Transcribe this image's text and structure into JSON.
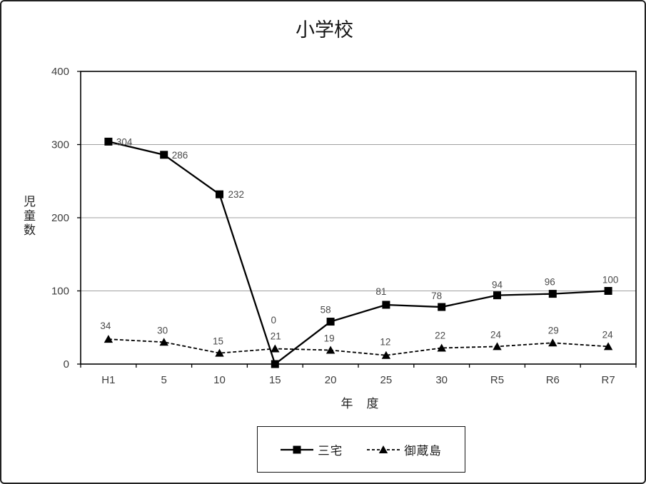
{
  "chart_data": {
    "type": "line",
    "title": "小学校",
    "xlabel": "年度",
    "xlabel_display": "年　度",
    "ylabel": "児童数",
    "categories": [
      "H1",
      "5",
      "10",
      "15",
      "20",
      "25",
      "30",
      "R5",
      "R6",
      "R7"
    ],
    "series": [
      {
        "name": "三宅",
        "marker": "square",
        "line_style": "solid",
        "color": "#000000",
        "values": [
          304,
          286,
          232,
          0,
          58,
          81,
          78,
          94,
          96,
          100
        ]
      },
      {
        "name": "御蔵島",
        "marker": "triangle",
        "line_style": "dashed",
        "color": "#000000",
        "values": [
          34,
          30,
          15,
          21,
          19,
          12,
          22,
          24,
          29,
          24
        ]
      }
    ],
    "ylim": [
      0,
      400
    ],
    "yticks": [
      0,
      100,
      200,
      300,
      400
    ],
    "grid": true,
    "gridline_color": "#a0a0a0",
    "tick_label_color": "#3d3d3d",
    "data_label_color": "#4a4a4a",
    "legend_position": "bottom"
  }
}
